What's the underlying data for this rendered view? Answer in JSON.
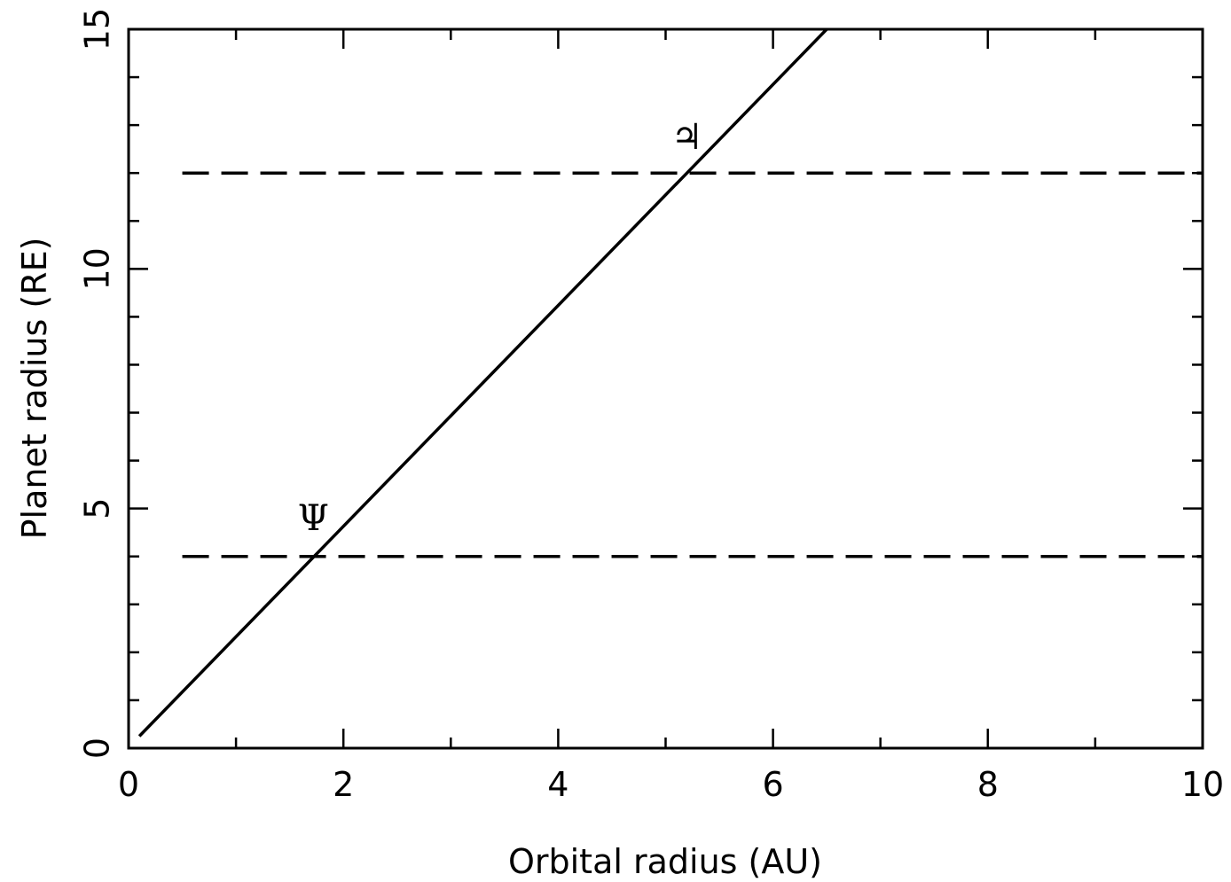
{
  "chart_data": {
    "type": "line",
    "title": "",
    "xlabel": "Orbital radius (AU)",
    "ylabel": "Planet radius (RE)",
    "xlim": [
      0,
      10
    ],
    "ylim": [
      0,
      15
    ],
    "x_ticks": [
      "0",
      "2",
      "4",
      "6",
      "8",
      "10"
    ],
    "y_ticks": [
      "0",
      "5",
      "10",
      "15"
    ],
    "grid": false,
    "legend": "none",
    "series": [
      {
        "style": "solid",
        "color": "#000000",
        "x": [
          0.1,
          6.5
        ],
        "y": [
          0.25,
          15.0
        ]
      },
      {
        "style": "dashed",
        "color": "#000000",
        "x": [
          0.5,
          10
        ],
        "y": [
          4.0,
          4.0
        ]
      },
      {
        "style": "dashed",
        "color": "#000000",
        "x": [
          0.5,
          10
        ],
        "y": [
          12.0,
          12.0
        ]
      }
    ],
    "annotations": [
      {
        "text": "Ψ",
        "x": 1.72,
        "y": 4.55,
        "meaning": "neptune-symbol"
      },
      {
        "text": "♃",
        "x": 5.2,
        "y": 12.5,
        "meaning": "jupiter-symbol"
      }
    ]
  }
}
